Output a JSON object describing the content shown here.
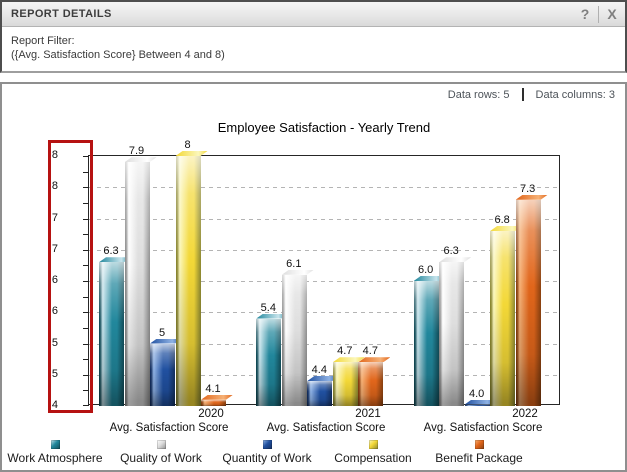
{
  "window": {
    "title": "REPORT DETAILS"
  },
  "icons": {
    "help": "?",
    "close": "X"
  },
  "filter": {
    "label": "Report Filter:",
    "expression": "({Avg. Satisfaction Score} Between 4 and 8)"
  },
  "summary": {
    "rows": "Data rows: 5",
    "columns": "Data columns: 3"
  },
  "annotation": {
    "shape": "rectangle",
    "color": "#b61211",
    "location": "around y-axis labels"
  },
  "chart_data": {
    "type": "bar",
    "title": "Employee Satisfaction - Yearly Trend",
    "categories": [
      "2020",
      "2021",
      "2022"
    ],
    "xlabel": "Avg. Satisfaction Score",
    "ylabel": "",
    "ylim": [
      4,
      8
    ],
    "grid": true,
    "legend_position": "bottom",
    "axis_y": {
      "min": 4,
      "max": 8,
      "grid_step": 0.5,
      "tick_step": 0.25,
      "tick_labels": [
        "8",
        "8",
        "7",
        "7",
        "6",
        "6",
        "5",
        "5",
        "4"
      ]
    },
    "series": [
      {
        "name": "Work Atmosphere",
        "values": [
          6.3,
          5.4,
          6.0
        ],
        "display": [
          "6.3",
          "5.4",
          "6.0"
        ],
        "colors": {
          "light": "#c7e4ec",
          "main": "#21879c",
          "dark": "#124c58"
        }
      },
      {
        "name": "Quality of Work",
        "values": [
          7.9,
          6.1,
          6.3
        ],
        "display": [
          "7.9",
          "6.1",
          "6.3"
        ],
        "colors": {
          "light": "#ffffff",
          "main": "#dedede",
          "dark": "#8f8f8f"
        }
      },
      {
        "name": "Quantity of Work",
        "values": [
          5.0,
          4.4,
          4.0
        ],
        "display": [
          "5",
          "4.4",
          "4.0"
        ],
        "colors": {
          "light": "#8fb2e4",
          "main": "#2050a0",
          "dark": "#142f5f"
        }
      },
      {
        "name": "Compensation",
        "values": [
          8.0,
          4.7,
          6.8
        ],
        "display": [
          "8",
          "4.7",
          "6.8"
        ],
        "colors": {
          "light": "#fbf7bb",
          "main": "#f3d837",
          "dark": "#8b8731"
        }
      },
      {
        "name": "Benefit Package",
        "values": [
          4.1,
          4.7,
          7.3
        ],
        "display": [
          "4.1",
          "4.7",
          "7.3"
        ],
        "colors": {
          "light": "#f6b176",
          "main": "#e1661b",
          "dark": "#8a4110"
        }
      }
    ]
  }
}
